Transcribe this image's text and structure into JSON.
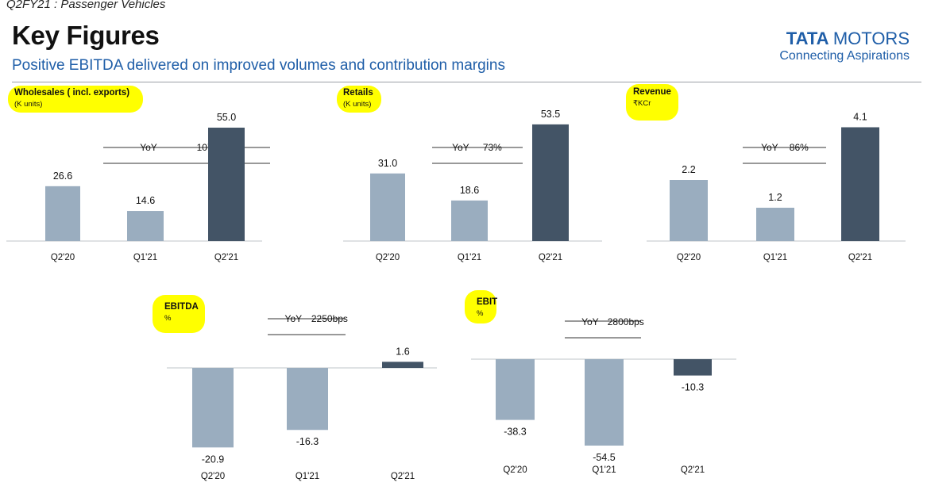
{
  "header": {
    "section_tag": "Q2FY21 : Passenger Vehicles",
    "title": "Key Figures",
    "subtitle": "Positive EBITDA delivered on improved volumes and contribution margins"
  },
  "brand": {
    "name_bold": "TATA",
    "name_rest": "MOTORS",
    "tagline": "Connecting Aspirations"
  },
  "colors": {
    "text_blue": "#1f5ea8",
    "bar_light": "#9aadbf",
    "bar_dark": "#435466",
    "highlight": "#ffff00"
  },
  "chart_data": [
    {
      "id": "wholesales",
      "type": "bar",
      "title": "Wholesales ( incl. exports)",
      "unit": "(K units)",
      "categories": [
        "Q2'20",
        "Q1'21",
        "Q2'21"
      ],
      "values": [
        26.6,
        14.6,
        55.0
      ],
      "value_labels": [
        "26.6",
        "14.6",
        "55.0"
      ],
      "yoy_label": "YoY",
      "yoy_value": "107%"
    },
    {
      "id": "retails",
      "type": "bar",
      "title": "Retails",
      "unit": "(K units)",
      "categories": [
        "Q2'20",
        "Q1'21",
        "Q2'21"
      ],
      "values": [
        31.0,
        18.6,
        53.5
      ],
      "value_labels": [
        "31.0",
        "18.6",
        "53.5"
      ],
      "yoy_label": "YoY",
      "yoy_value": "73%"
    },
    {
      "id": "revenue",
      "type": "bar",
      "title": "Revenue",
      "unit": "₹KCr",
      "categories": [
        "Q2'20",
        "Q1'21",
        "Q2'21"
      ],
      "values": [
        2.2,
        1.2,
        4.1
      ],
      "value_labels": [
        "2.2",
        "1.2",
        "4.1"
      ],
      "yoy_label": "YoY",
      "yoy_value": "86%"
    },
    {
      "id": "ebitda",
      "type": "bar",
      "title": "EBITDA",
      "unit": "%",
      "categories": [
        "Q2'20",
        "Q1'21",
        "Q2'21"
      ],
      "values": [
        -20.9,
        -16.3,
        1.6
      ],
      "value_labels": [
        "-20.9",
        "-16.3",
        "1.6"
      ],
      "yoy_label": "YoY",
      "yoy_value": "2250bps"
    },
    {
      "id": "ebit",
      "type": "bar",
      "title": "EBIT",
      "unit": "%",
      "categories": [
        "Q2'20",
        "Q1'21",
        "Q2'21"
      ],
      "values": [
        -38.3,
        -54.5,
        -10.3
      ],
      "value_labels": [
        "-38.3",
        "-54.5",
        "-10.3"
      ],
      "yoy_label": "YoY",
      "yoy_value": "2800bps"
    }
  ]
}
